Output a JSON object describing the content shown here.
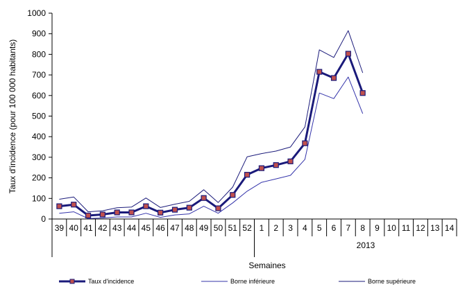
{
  "chart_data": {
    "type": "line",
    "ylabel": "Taux d'incidence (pour 100 000 habitants)",
    "xlabel": "Semaines",
    "ylim": [
      0,
      1000
    ],
    "yticks": [
      "0",
      "100",
      "200",
      "300",
      "400",
      "500",
      "600",
      "700",
      "800",
      "900",
      "1000"
    ],
    "categories": [
      "39",
      "40",
      "41",
      "42",
      "43",
      "44",
      "45",
      "46",
      "47",
      "48",
      "49",
      "50",
      "51",
      "52",
      "1",
      "2",
      "3",
      "4",
      "5",
      "6",
      "7",
      "8",
      "9",
      "10",
      "11",
      "12",
      "13",
      "14"
    ],
    "year_label": "2013",
    "grid": false,
    "legend_position": "bottom",
    "series": [
      {
        "name": "Taux d'incidence",
        "color": "#1a1a7a",
        "marker_color": "#c0504d",
        "values": [
          62,
          70,
          17,
          22,
          32,
          32,
          62,
          31,
          45,
          55,
          102,
          52,
          117,
          215,
          247,
          262,
          280,
          368,
          715,
          685,
          803,
          612,
          null,
          null,
          null,
          null,
          null,
          null
        ]
      },
      {
        "name": "Borne inférieure",
        "color": "#3333aa",
        "values": [
          28,
          35,
          2,
          5,
          10,
          10,
          28,
          8,
          20,
          25,
          62,
          28,
          78,
          135,
          178,
          195,
          212,
          290,
          612,
          585,
          690,
          512,
          null,
          null,
          null,
          null,
          null,
          null
        ]
      },
      {
        "name": "Borne supérieure",
        "color": "#1a1a7a",
        "values": [
          96,
          107,
          35,
          40,
          55,
          58,
          102,
          56,
          72,
          86,
          142,
          80,
          155,
          302,
          318,
          330,
          350,
          447,
          822,
          785,
          915,
          710,
          null,
          null,
          null,
          null,
          null,
          null
        ]
      }
    ]
  }
}
